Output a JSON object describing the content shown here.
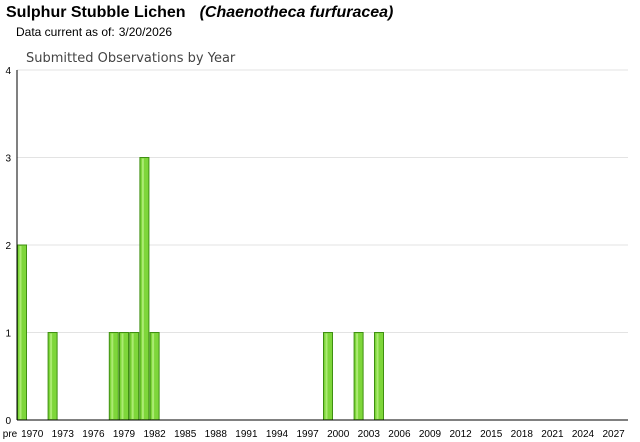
{
  "header": {
    "common_name": "Sulphur Stubble Lichen",
    "scientific_name": "(Chaenotheca furfuracea)",
    "data_current_label": "Data current as of:",
    "data_current_date": "3/20/2026"
  },
  "colors": {
    "bar_fill": "#7ed63a",
    "bar_stroke": "#3f8f12",
    "grid": "#e3e3e3",
    "axis": "#000000"
  },
  "chart_data": {
    "type": "bar",
    "title": "Submitted Observations by Year",
    "xlabel": "",
    "ylabel": "",
    "ylim": [
      0,
      4
    ],
    "y_ticks": [
      0,
      1,
      2,
      3,
      4
    ],
    "grid": true,
    "x_tick_labels": [
      "pre",
      "1970",
      "1973",
      "1976",
      "1979",
      "1982",
      "1985",
      "1988",
      "1991",
      "1994",
      "1997",
      "2000",
      "2003",
      "2006",
      "2009",
      "2012",
      "2015",
      "2018",
      "2021",
      "2024",
      "2027"
    ],
    "bars": [
      {
        "category": "pre 1970",
        "value": 2
      },
      {
        "category": "1972",
        "value": 1
      },
      {
        "category": "1978",
        "value": 1
      },
      {
        "category": "1979",
        "value": 1
      },
      {
        "category": "1980",
        "value": 1
      },
      {
        "category": "1981",
        "value": 3
      },
      {
        "category": "1982",
        "value": 1
      },
      {
        "category": "1999",
        "value": 1
      },
      {
        "category": "2002",
        "value": 1
      },
      {
        "category": "2004",
        "value": 1
      }
    ]
  }
}
